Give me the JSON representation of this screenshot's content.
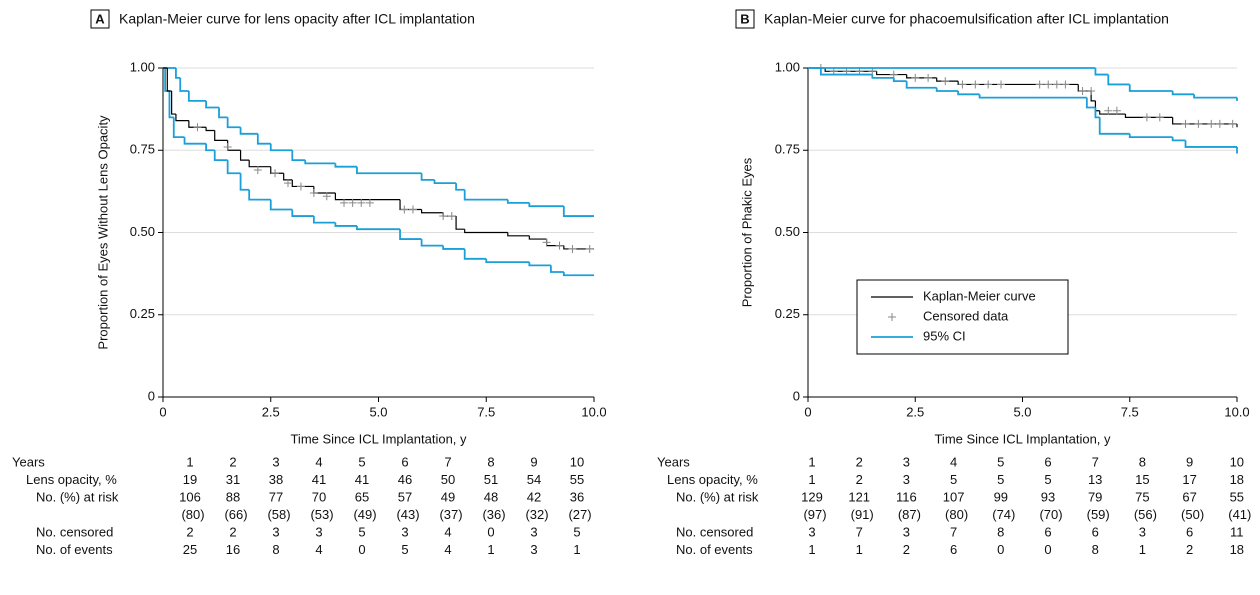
{
  "chart_data": [
    {
      "type": "line",
      "panel": "A",
      "title": "Kaplan-Meier curve for lens opacity after ICL implantation",
      "xlabel": "Time Since ICL Implantation, y",
      "ylabel": "Proportion of Eyes Without Lens Opacity",
      "xlim": [
        0,
        10
      ],
      "ylim": [
        0,
        1
      ],
      "xticks": [
        0,
        2.5,
        {
          "value": 5,
          "label": "5.0"
        },
        7.5,
        {
          "value": 10,
          "label": "10.0"
        }
      ],
      "yticks": [
        0,
        0.25,
        {
          "value": 0.5,
          "label": "0.50"
        },
        0.75,
        {
          "value": 1,
          "label": "1.00"
        }
      ],
      "grid": true,
      "series": [
        {
          "color": "#1a9fd9",
          "style": "step",
          "x": [
            0,
            0.3,
            0.4,
            0.6,
            1.0,
            1.3,
            1.5,
            1.8,
            2.2,
            2.5,
            3.0,
            3.3,
            4.0,
            4.5,
            6.0,
            6.3,
            6.8,
            7.0,
            8.0,
            8.5,
            9.3,
            10
          ],
          "values": [
            1,
            0.97,
            0.93,
            0.9,
            0.88,
            0.85,
            0.82,
            0.8,
            0.77,
            0.75,
            0.72,
            0.71,
            0.7,
            0.68,
            0.66,
            0.65,
            0.63,
            0.6,
            0.59,
            0.58,
            0.55,
            0.55
          ]
        },
        {
          "color": "#1a9fd9",
          "style": "step",
          "x": [
            0,
            0.05,
            0.15,
            0.25,
            0.5,
            1.0,
            1.2,
            1.5,
            1.8,
            2.0,
            2.5,
            3.0,
            3.5,
            4.0,
            4.5,
            5.5,
            6.0,
            6.5,
            7.0,
            7.5,
            8.5,
            9.0,
            9.3,
            10
          ],
          "values": [
            1,
            0.93,
            0.85,
            0.79,
            0.77,
            0.75,
            0.72,
            0.68,
            0.63,
            0.6,
            0.57,
            0.55,
            0.53,
            0.52,
            0.51,
            0.48,
            0.46,
            0.45,
            0.42,
            0.41,
            0.4,
            0.38,
            0.37,
            0.37
          ]
        },
        {
          "color": "#000000",
          "style": "step",
          "x": [
            0,
            0.1,
            0.2,
            0.3,
            0.6,
            1.0,
            1.2,
            1.5,
            1.8,
            2.0,
            2.5,
            2.8,
            3.0,
            3.5,
            4.0,
            5.5,
            6.0,
            6.5,
            6.8,
            7.0,
            8.0,
            8.5,
            8.9,
            9.3,
            10
          ],
          "values": [
            1,
            0.93,
            0.86,
            0.84,
            0.82,
            0.81,
            0.78,
            0.75,
            0.72,
            0.7,
            0.68,
            0.66,
            0.64,
            0.62,
            0.6,
            0.57,
            0.56,
            0.55,
            0.51,
            0.5,
            0.49,
            0.48,
            0.46,
            0.45,
            0.45
          ]
        },
        {
          "color": "#888888",
          "style": "marker",
          "x": [
            0.8,
            1.5,
            2.2,
            2.6,
            2.9,
            3.2,
            3.5,
            3.8,
            4.2,
            4.4,
            4.6,
            4.8,
            5.6,
            5.8,
            6.5,
            6.7,
            8.9,
            9.2,
            9.5,
            9.9
          ],
          "values": [
            0.82,
            0.76,
            0.69,
            0.68,
            0.65,
            0.64,
            0.62,
            0.61,
            0.59,
            0.59,
            0.59,
            0.59,
            0.57,
            0.57,
            0.55,
            0.55,
            0.47,
            0.46,
            0.45,
            0.45
          ]
        }
      ],
      "risk_table": {
        "rows": [
          {
            "label": "Years",
            "values": [
              1,
              2,
              3,
              4,
              5,
              6,
              7,
              8,
              9,
              10
            ]
          },
          {
            "label": "Lens opacity, %",
            "values": [
              19,
              31,
              38,
              41,
              41,
              46,
              50,
              51,
              54,
              55
            ]
          },
          {
            "label": "No. (%) at risk",
            "values": [
              106,
              88,
              77,
              70,
              65,
              57,
              49,
              48,
              42,
              36
            ],
            "percent_labels": [
              "(80)",
              "(66)",
              "(58)",
              "(53)",
              "(49)",
              "(43)",
              "(37)",
              "(36)",
              "(32)",
              "(27)"
            ]
          },
          {
            "label": "No. censored",
            "values": [
              2,
              2,
              3,
              3,
              5,
              3,
              4,
              0,
              3,
              5
            ]
          },
          {
            "label": "No. of events",
            "values": [
              25,
              16,
              8,
              4,
              0,
              5,
              4,
              1,
              3,
              1
            ]
          }
        ]
      }
    },
    {
      "type": "line",
      "panel": "B",
      "title": "Kaplan-Meier curve for phacoemulsification after ICL implantation",
      "xlabel": "Time Since ICL Implantation, y",
      "ylabel": "Proportion of Phakic Eyes",
      "xlim": [
        0,
        10
      ],
      "ylim": [
        0,
        1
      ],
      "xticks": [
        0,
        2.5,
        {
          "value": 5,
          "label": "5.0"
        },
        7.5,
        {
          "value": 10,
          "label": "10.0"
        }
      ],
      "yticks": [
        0,
        0.25,
        {
          "value": 0.5,
          "label": "0.50"
        },
        0.75,
        {
          "value": 1,
          "label": "1.00"
        }
      ],
      "grid": true,
      "legend": "center-left",
      "series": [
        {
          "name": "Kaplan-Meier curve",
          "color": "#000000",
          "style": "step",
          "x": [
            0,
            0.4,
            1.6,
            2.3,
            3.0,
            3.5,
            6.3,
            6.6,
            6.7,
            6.8,
            7.4,
            8.5,
            10
          ],
          "values": [
            1,
            0.99,
            0.98,
            0.97,
            0.96,
            0.95,
            0.93,
            0.9,
            0.87,
            0.86,
            0.85,
            0.83,
            0.82
          ]
        },
        {
          "name": "Censored data",
          "color": "#888888",
          "style": "marker",
          "x": [
            0.3,
            0.6,
            0.9,
            1.2,
            1.5,
            2.0,
            2.5,
            2.8,
            3.2,
            3.6,
            3.9,
            4.2,
            4.5,
            5.4,
            5.6,
            5.8,
            6.0,
            6.4,
            6.6,
            7.0,
            7.2,
            7.9,
            8.2,
            8.8,
            9.1,
            9.4,
            9.6,
            9.9
          ],
          "values": [
            1,
            0.99,
            0.99,
            0.99,
            0.99,
            0.98,
            0.97,
            0.97,
            0.96,
            0.95,
            0.95,
            0.95,
            0.95,
            0.95,
            0.95,
            0.95,
            0.95,
            0.93,
            0.93,
            0.87,
            0.87,
            0.85,
            0.85,
            0.83,
            0.83,
            0.83,
            0.83,
            0.83
          ]
        },
        {
          "name": "95% CI",
          "color": "#1a9fd9",
          "style": "step",
          "x": [
            0,
            0.3,
            1.5,
            2.0,
            2.3,
            3.0,
            3.5,
            4.0,
            6.5,
            6.7,
            6.8,
            7.5,
            8.5,
            8.8,
            10
          ],
          "values": [
            1,
            0.98,
            0.97,
            0.96,
            0.94,
            0.93,
            0.92,
            0.91,
            0.88,
            0.85,
            0.8,
            0.79,
            0.78,
            0.76,
            0.74
          ]
        },
        {
          "color": "#1a9fd9",
          "style": "step",
          "x": [
            0,
            6.7,
            7.0,
            7.5,
            8.5,
            9.0,
            10
          ],
          "values": [
            1,
            0.98,
            0.95,
            0.93,
            0.92,
            0.91,
            0.9
          ]
        }
      ],
      "risk_table": {
        "rows": [
          {
            "label": "Years",
            "values": [
              1,
              2,
              3,
              4,
              5,
              6,
              7,
              8,
              9,
              10
            ]
          },
          {
            "label": "Lens opacity, %",
            "values": [
              1,
              2,
              3,
              5,
              5,
              5,
              13,
              15,
              17,
              18
            ]
          },
          {
            "label": "No. (%) at risk",
            "values": [
              129,
              121,
              116,
              107,
              99,
              93,
              79,
              75,
              67,
              55
            ],
            "percent_labels": [
              "(97)",
              "(91)",
              "(87)",
              "(80)",
              "(74)",
              "(70)",
              "(59)",
              "(56)",
              "(50)",
              "(41)"
            ]
          },
          {
            "label": "No. censored",
            "values": [
              3,
              7,
              3,
              7,
              8,
              6,
              6,
              3,
              6,
              11
            ]
          },
          {
            "label": "No. of events",
            "values": [
              1,
              1,
              2,
              6,
              0,
              0,
              8,
              1,
              2,
              18
            ]
          }
        ]
      }
    }
  ]
}
